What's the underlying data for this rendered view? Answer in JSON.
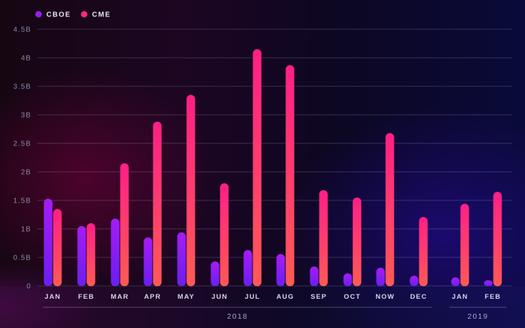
{
  "chart_data": {
    "type": "bar",
    "title": "",
    "xlabel": "",
    "ylabel": "",
    "ylim": [
      0,
      4.5
    ],
    "yticks": [
      0,
      0.5,
      1,
      1.5,
      2,
      2.5,
      3,
      3.5,
      4,
      4.5
    ],
    "ytick_labels": [
      "0",
      "0.5B",
      "1B",
      "1.5B",
      "2B",
      "2.5B",
      "3B",
      "3.5B",
      "4B",
      "4.5B"
    ],
    "grid": true,
    "legend_position": "top-left",
    "groups": [
      {
        "label": "2018",
        "categories": [
          "JAN",
          "FEB",
          "MAR",
          "APR",
          "MAY",
          "JUN",
          "JUL",
          "AUG",
          "SEP",
          "OCT",
          "NOW",
          "DEC"
        ]
      },
      {
        "label": "2019",
        "categories": [
          "JAN",
          "FEB"
        ]
      }
    ],
    "categories": [
      "JAN",
      "FEB",
      "MAR",
      "APR",
      "MAY",
      "JUN",
      "JUL",
      "AUG",
      "SEP",
      "OCT",
      "NOW",
      "DEC",
      "JAN",
      "FEB"
    ],
    "series": [
      {
        "name": "CBOE",
        "color": "#9a1cf2",
        "values": [
          1.53,
          1.05,
          1.18,
          0.85,
          0.94,
          0.43,
          0.63,
          0.56,
          0.34,
          0.22,
          0.32,
          0.18,
          0.15,
          0.1
        ]
      },
      {
        "name": "CME",
        "color": "#ff2a7a",
        "values": [
          1.35,
          1.1,
          2.15,
          2.88,
          3.35,
          1.8,
          4.15,
          3.87,
          1.68,
          1.55,
          2.68,
          1.21,
          1.44,
          1.65
        ]
      }
    ]
  }
}
